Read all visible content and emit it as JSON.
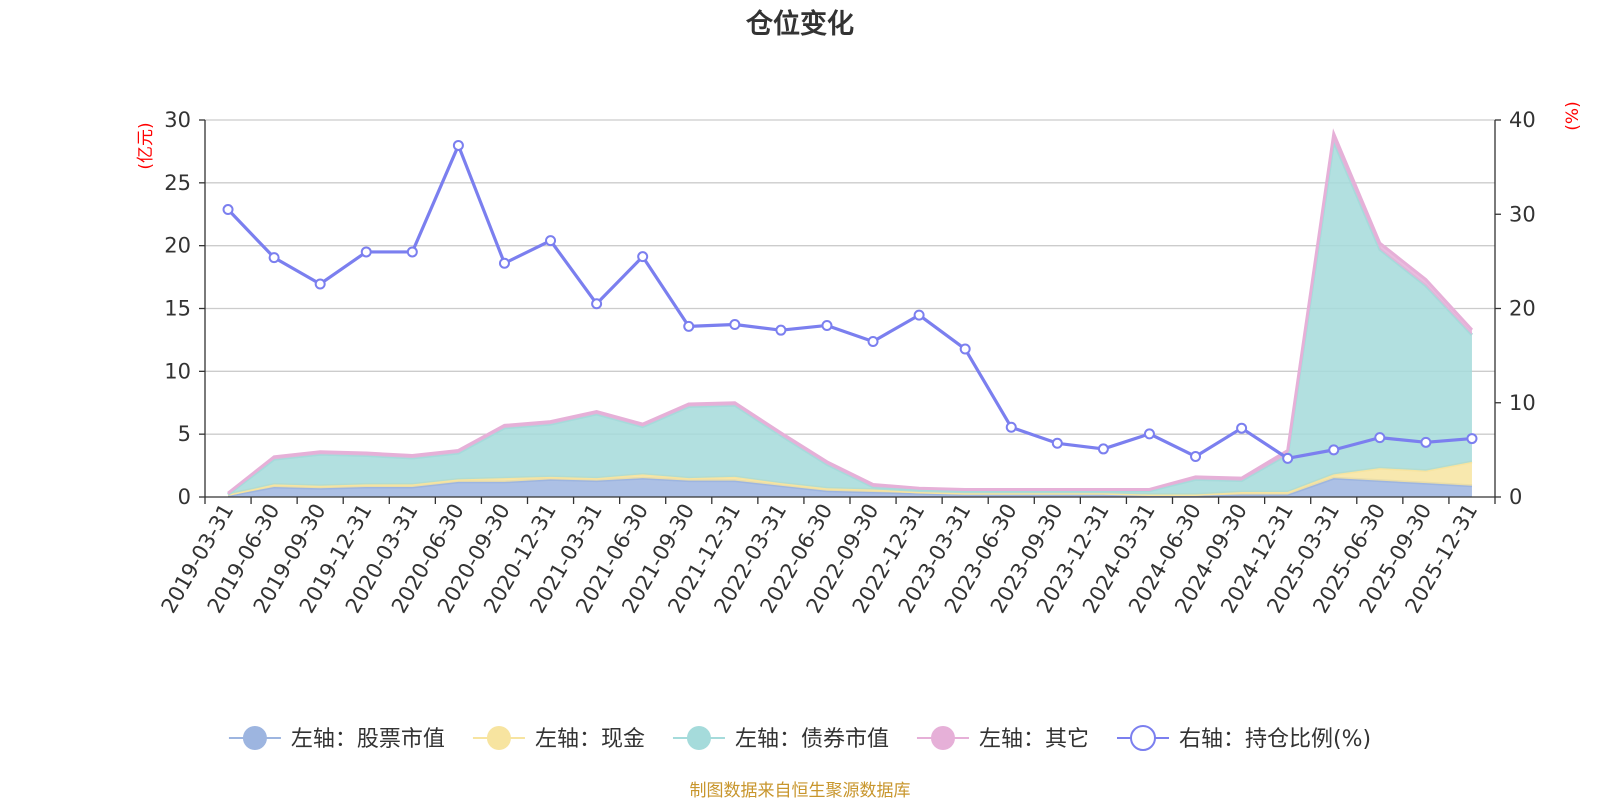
{
  "chart_data": {
    "type": "area",
    "title": "仓位变化",
    "left_axis_unit": "(亿元)",
    "right_axis_unit": "(%)",
    "left_ylim": [
      0,
      30
    ],
    "left_ticks": [
      0,
      5,
      10,
      15,
      20,
      25,
      30
    ],
    "right_ylim": [
      0,
      40
    ],
    "right_ticks": [
      0,
      10,
      20,
      30,
      40
    ],
    "grid": true,
    "legend_position": "bottom",
    "categories": [
      "2019-03-31",
      "2019-06-30",
      "2019-09-30",
      "2019-12-31",
      "2020-03-31",
      "2020-06-30",
      "2020-09-30",
      "2020-12-31",
      "2021-03-31",
      "2021-06-30",
      "2021-09-30",
      "2021-12-31",
      "2022-03-31",
      "2022-06-30",
      "2022-09-30",
      "2022-12-31",
      "2023-03-31",
      "2023-06-30",
      "2023-09-30",
      "2023-12-31",
      "2024-03-31",
      "2024-06-30",
      "2024-09-30",
      "2024-12-31",
      "2025-03-31",
      "2025-06-30",
      "2025-09-30",
      "2025-12-31"
    ],
    "stacked_series": [
      {
        "name": "左轴：股票市值",
        "color": "#9db5e0",
        "values": [
          0.1,
          0.8,
          0.7,
          0.8,
          0.8,
          1.2,
          1.2,
          1.4,
          1.3,
          1.5,
          1.3,
          1.3,
          0.9,
          0.5,
          0.4,
          0.3,
          0.2,
          0.2,
          0.2,
          0.2,
          0.1,
          0.1,
          0.2,
          0.2,
          1.5,
          1.3,
          1.1,
          0.9
        ]
      },
      {
        "name": "左轴：现金",
        "color": "#f7e4a0",
        "values": [
          0.1,
          0.2,
          0.2,
          0.2,
          0.2,
          0.2,
          0.3,
          0.2,
          0.2,
          0.3,
          0.2,
          0.3,
          0.2,
          0.2,
          0.2,
          0.1,
          0.1,
          0.1,
          0.1,
          0.1,
          0.1,
          0.1,
          0.2,
          0.2,
          0.3,
          1.0,
          1.0,
          1.9
        ]
      },
      {
        "name": "左轴：债券市值",
        "color": "#a5dbdb",
        "values": [
          0.0,
          2.0,
          2.5,
          2.3,
          2.1,
          2.1,
          4.0,
          4.2,
          5.1,
          3.8,
          5.7,
          5.7,
          3.8,
          1.9,
          0.2,
          0.2,
          0.2,
          0.2,
          0.2,
          0.2,
          0.3,
          1.2,
          0.9,
          3.0,
          26.5,
          17.4,
          14.7,
          10.1
        ]
      },
      {
        "name": "左轴：其它",
        "color": "#e6b0d8",
        "values": [
          0.1,
          0.2,
          0.2,
          0.2,
          0.2,
          0.2,
          0.2,
          0.2,
          0.2,
          0.2,
          0.2,
          0.2,
          0.2,
          0.2,
          0.2,
          0.1,
          0.1,
          0.1,
          0.1,
          0.1,
          0.1,
          0.2,
          0.2,
          0.3,
          0.6,
          0.5,
          0.5,
          0.4
        ]
      }
    ],
    "line_series": {
      "name": "右轴：持仓比例(%)",
      "color": "#7b7fef",
      "values": [
        30.5,
        25.4,
        22.6,
        26.0,
        26.0,
        37.3,
        24.8,
        27.2,
        20.5,
        25.5,
        18.1,
        18.3,
        17.7,
        18.2,
        16.5,
        19.3,
        15.7,
        7.4,
        5.7,
        5.1,
        6.7,
        4.3,
        7.3,
        4.1,
        5.0,
        6.3,
        5.8,
        6.2
      ]
    },
    "source": "制图数据来自恒生聚源数据库"
  }
}
